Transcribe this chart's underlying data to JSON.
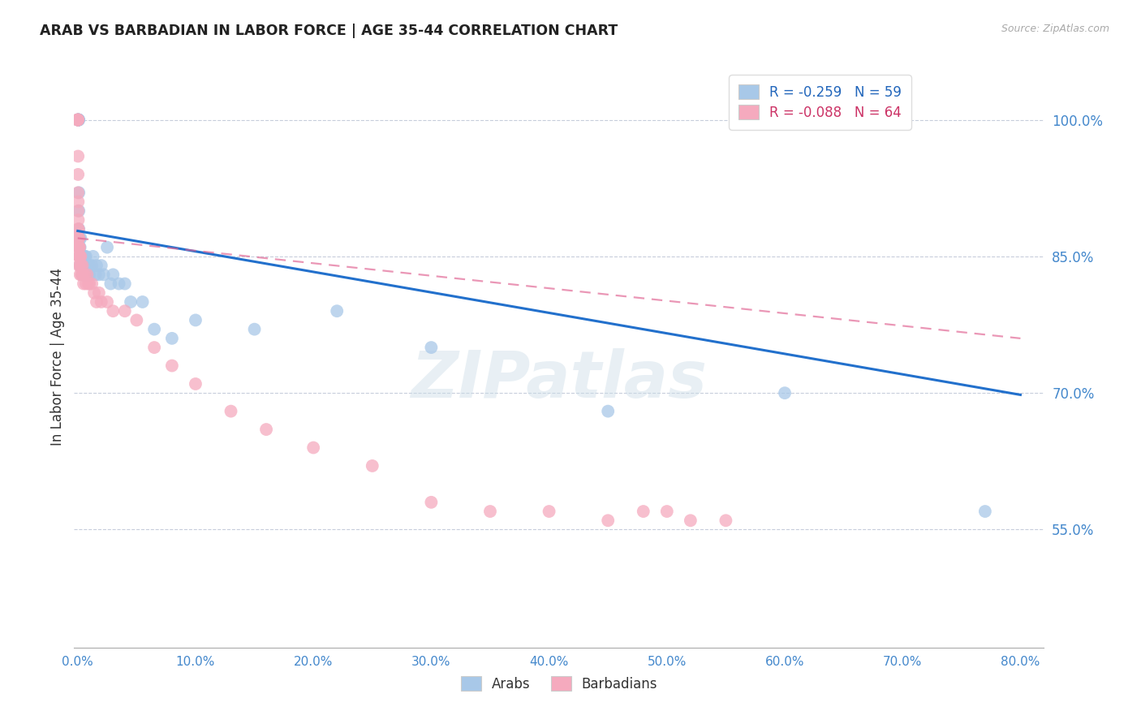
{
  "title": "ARAB VS BARBADIAN IN LABOR FORCE | AGE 35-44 CORRELATION CHART",
  "source": "Source: ZipAtlas.com",
  "ylabel": "In Labor Force | Age 35-44",
  "watermark": "ZIPatlas",
  "legend_arab": "Arabs",
  "legend_barb": "Barbadians",
  "arab_R": -0.259,
  "arab_N": 59,
  "barb_R": -0.088,
  "barb_N": 64,
  "arab_color": "#a8c8e8",
  "barb_color": "#f5aabe",
  "arab_line_color": "#2270cc",
  "barb_line_color": "#e06090",
  "xlim": [
    -0.003,
    0.82
  ],
  "ylim": [
    0.42,
    1.06
  ],
  "yticks": [
    0.55,
    0.7,
    0.85,
    1.0
  ],
  "ytick_labels": [
    "55.0%",
    "70.0%",
    "85.0%",
    "100.0%"
  ],
  "xticks": [
    0.0,
    0.1,
    0.2,
    0.3,
    0.4,
    0.5,
    0.6,
    0.7,
    0.8
  ],
  "xtick_labels": [
    "0.0%",
    "10.0%",
    "20.0%",
    "30.0%",
    "40.0%",
    "50.0%",
    "60.0%",
    "70.0%",
    "80.0%"
  ],
  "arab_line_x": [
    0.0,
    0.8
  ],
  "arab_line_y": [
    0.878,
    0.698
  ],
  "barb_line_x": [
    0.0,
    0.8
  ],
  "barb_line_y": [
    0.87,
    0.76
  ],
  "arab_scatter_x": [
    0.0002,
    0.0003,
    0.0004,
    0.0005,
    0.0006,
    0.0007,
    0.0008,
    0.0009,
    0.001,
    0.001,
    0.001,
    0.001,
    0.0015,
    0.0015,
    0.002,
    0.002,
    0.002,
    0.0025,
    0.003,
    0.003,
    0.003,
    0.004,
    0.004,
    0.004,
    0.005,
    0.005,
    0.005,
    0.006,
    0.006,
    0.007,
    0.007,
    0.008,
    0.008,
    0.009,
    0.01,
    0.01,
    0.012,
    0.013,
    0.015,
    0.016,
    0.018,
    0.02,
    0.022,
    0.025,
    0.028,
    0.03,
    0.035,
    0.04,
    0.045,
    0.055,
    0.065,
    0.08,
    0.1,
    0.15,
    0.22,
    0.3,
    0.45,
    0.6,
    0.77
  ],
  "arab_scatter_y": [
    1.0,
    1.0,
    1.0,
    1.0,
    1.0,
    1.0,
    1.0,
    1.0,
    0.92,
    0.9,
    0.88,
    0.87,
    0.87,
    0.86,
    0.86,
    0.85,
    0.84,
    0.87,
    0.85,
    0.85,
    0.84,
    0.85,
    0.84,
    0.83,
    0.85,
    0.84,
    0.83,
    0.85,
    0.84,
    0.85,
    0.83,
    0.84,
    0.83,
    0.84,
    0.84,
    0.83,
    0.84,
    0.85,
    0.83,
    0.84,
    0.83,
    0.84,
    0.83,
    0.86,
    0.82,
    0.83,
    0.82,
    0.82,
    0.8,
    0.8,
    0.77,
    0.76,
    0.78,
    0.77,
    0.79,
    0.75,
    0.68,
    0.7,
    0.57
  ],
  "barb_scatter_x": [
    0.0001,
    0.0001,
    0.0002,
    0.0002,
    0.0003,
    0.0003,
    0.0003,
    0.0004,
    0.0004,
    0.0005,
    0.0005,
    0.0006,
    0.0006,
    0.0007,
    0.0008,
    0.0008,
    0.0009,
    0.001,
    0.001,
    0.001,
    0.001,
    0.0012,
    0.0013,
    0.0015,
    0.0015,
    0.002,
    0.002,
    0.002,
    0.0025,
    0.003,
    0.003,
    0.004,
    0.004,
    0.005,
    0.005,
    0.006,
    0.007,
    0.008,
    0.009,
    0.01,
    0.012,
    0.014,
    0.016,
    0.018,
    0.02,
    0.025,
    0.03,
    0.04,
    0.05,
    0.065,
    0.08,
    0.1,
    0.13,
    0.16,
    0.2,
    0.25,
    0.3,
    0.35,
    0.4,
    0.45,
    0.48,
    0.5,
    0.52,
    0.55
  ],
  "barb_scatter_y": [
    1.0,
    1.0,
    1.0,
    1.0,
    0.96,
    0.94,
    0.92,
    0.91,
    0.9,
    0.89,
    0.88,
    0.88,
    0.87,
    0.87,
    0.86,
    0.86,
    0.86,
    0.87,
    0.86,
    0.85,
    0.84,
    0.86,
    0.85,
    0.86,
    0.85,
    0.85,
    0.84,
    0.83,
    0.85,
    0.84,
    0.83,
    0.84,
    0.83,
    0.83,
    0.82,
    0.83,
    0.82,
    0.83,
    0.82,
    0.82,
    0.82,
    0.81,
    0.8,
    0.81,
    0.8,
    0.8,
    0.79,
    0.79,
    0.78,
    0.75,
    0.73,
    0.71,
    0.68,
    0.66,
    0.64,
    0.62,
    0.58,
    0.57,
    0.57,
    0.56,
    0.57,
    0.57,
    0.56,
    0.56
  ]
}
